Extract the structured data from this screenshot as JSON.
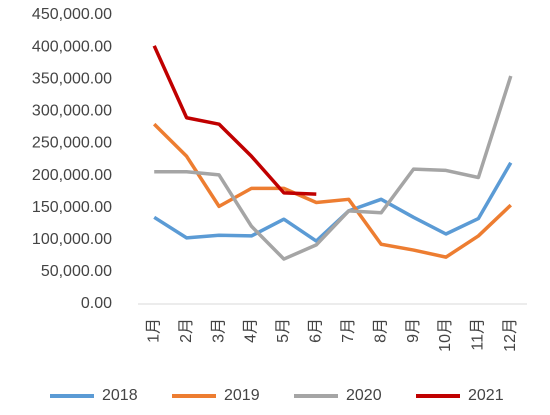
{
  "chart_data": {
    "type": "line",
    "categories": [
      "1月",
      "2月",
      "3月",
      "4月",
      "5月",
      "6月",
      "7月",
      "8月",
      "9月",
      "10月",
      "11月",
      "12月"
    ],
    "series": [
      {
        "name": "2018",
        "color": "#5b9bd5",
        "values": [
          135000,
          103000,
          107000,
          106000,
          132000,
          98000,
          145000,
          163000,
          135000,
          109000,
          133000,
          220000
        ]
      },
      {
        "name": "2019",
        "color": "#ed7d31",
        "values": [
          280000,
          230000,
          152000,
          180000,
          180000,
          158000,
          163000,
          93000,
          84000,
          73000,
          106000,
          154000
        ]
      },
      {
        "name": "2020",
        "color": "#a5a5a5",
        "values": [
          206000,
          206000,
          201000,
          121000,
          70000,
          92000,
          145000,
          142000,
          210000,
          208000,
          197000,
          355000
        ]
      },
      {
        "name": "2021",
        "color": "#c00000",
        "values": [
          402000,
          290000,
          280000,
          230000,
          173000,
          171000,
          null,
          null,
          null,
          null,
          null,
          null
        ]
      }
    ],
    "ylim": [
      0,
      450000
    ],
    "yticks": [
      {
        "value": 0,
        "label": "0.00"
      },
      {
        "value": 50000,
        "label": "50,000.00"
      },
      {
        "value": 100000,
        "label": "100,000.00"
      },
      {
        "value": 150000,
        "label": "150,000.00"
      },
      {
        "value": 200000,
        "label": "200,000.00"
      },
      {
        "value": 250000,
        "label": "250,000.00"
      },
      {
        "value": 300000,
        "label": "300,000.00"
      },
      {
        "value": 350000,
        "label": "350,000.00"
      },
      {
        "value": 400000,
        "label": "400,000.00"
      },
      {
        "value": 450000,
        "label": "450,000.00"
      }
    ],
    "grid": false,
    "legend": "bottom"
  }
}
